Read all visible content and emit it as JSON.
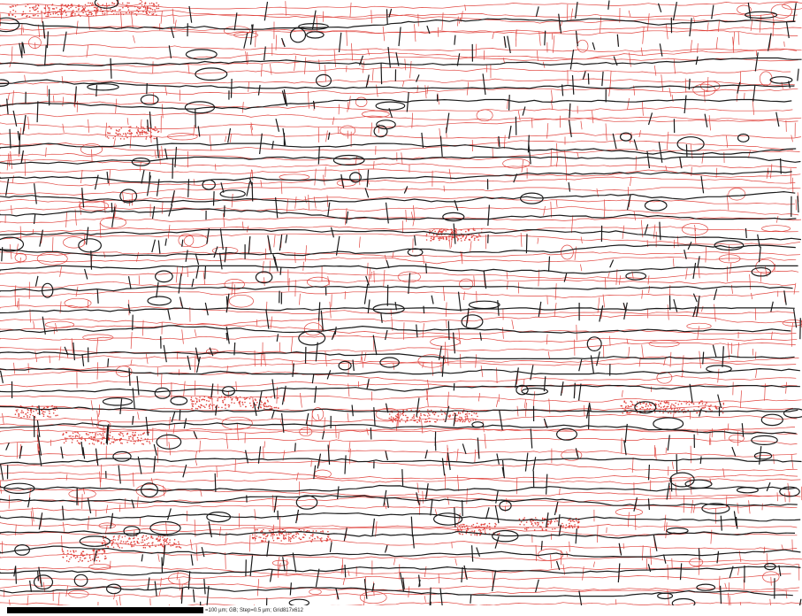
{
  "image": {
    "kind": "EBSD grain boundary map",
    "colors": {
      "background": "#ffffff",
      "high_angle_boundary": "#1a1a1a",
      "low_angle_boundary": "#e0453f",
      "scale_bar": "#000000"
    }
  },
  "scale_bar": {
    "caption": "=100 µm; GB; Step=0.5 µm; Grid817x612"
  }
}
